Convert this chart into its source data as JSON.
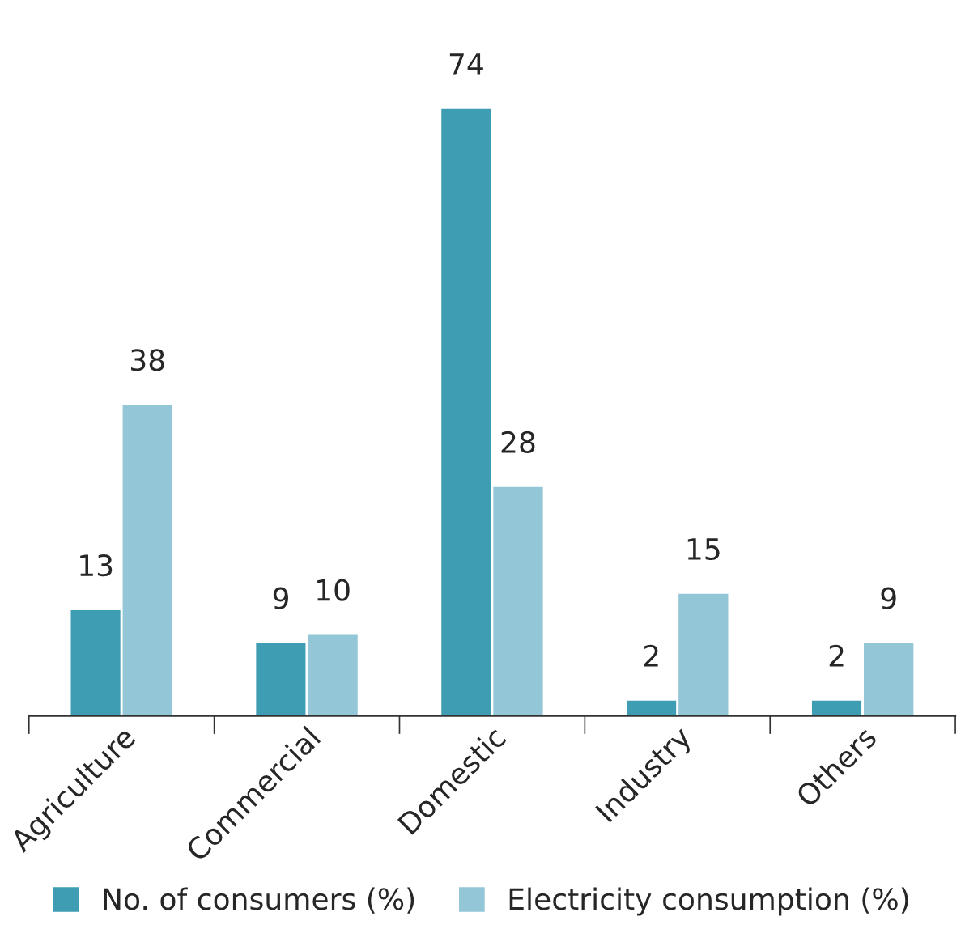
{
  "chart_data": {
    "type": "bar",
    "categories": [
      "Agriculture",
      "Commercial",
      "Domestic",
      "Industry",
      "Others"
    ],
    "series": [
      {
        "name": "No. of consumers (%)",
        "color": "#3f9db3",
        "values": [
          13,
          9,
          74,
          2,
          2
        ]
      },
      {
        "name": "Electricity consumption (%)",
        "color": "#93c6d6",
        "values": [
          38,
          10,
          28,
          15,
          9
        ]
      }
    ],
    "data_labels": true,
    "legend": "bottom",
    "grid": false
  }
}
